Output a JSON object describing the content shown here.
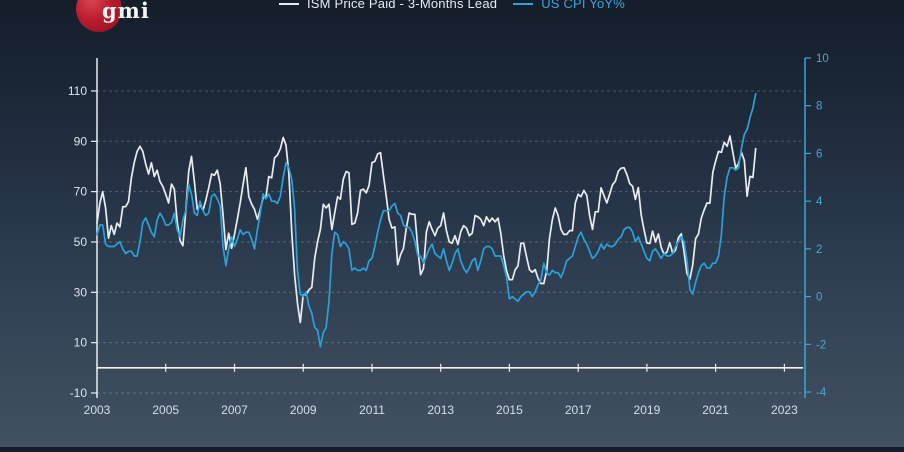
{
  "brand": {
    "logo_text": "gmi",
    "logo_color": "#b91c2e"
  },
  "chart_data": {
    "type": "line",
    "title": "",
    "legend_position": "top-center",
    "grid": "horizontal-dashed",
    "background": "dark-navy-gradient",
    "x_axis": {
      "range": [
        2003.0,
        2023.6
      ],
      "ticks": [
        2003,
        2005,
        2007,
        2009,
        2011,
        2013,
        2015,
        2017,
        2019,
        2021,
        2023
      ]
    },
    "left_axis": {
      "ticks": [
        -10,
        10,
        30,
        50,
        70,
        90,
        110
      ],
      "range": [
        -12,
        123.1
      ],
      "color": "#e9edf1"
    },
    "right_axis": {
      "ticks": [
        -4,
        -2,
        0,
        2,
        4,
        6,
        8,
        10
      ],
      "range": [
        -4.25,
        10
      ],
      "color": "#3ea4d9"
    },
    "zero_baseline": {
      "axis": "left",
      "value": 0
    },
    "series": [
      {
        "name": "ISM Price Paid - 3-Months Lead",
        "color": "#e9edf0",
        "axis": "left",
        "x_start": 2003.0,
        "x_step_months": 1,
        "values": [
          57.5,
          65.5,
          70.0,
          63.5,
          51.5,
          56.5,
          53.0,
          57.5,
          56.0,
          64.0,
          64.0,
          66.0,
          75.5,
          81.5,
          86.0,
          88.0,
          86.0,
          81.0,
          77.0,
          81.5,
          76.0,
          78.5,
          74.0,
          72.0,
          69.0,
          65.5,
          73.0,
          71.0,
          58.0,
          50.5,
          48.5,
          62.5,
          78.0,
          84.0,
          74.0,
          63.0,
          65.0,
          62.5,
          66.5,
          71.5,
          77.0,
          76.5,
          78.5,
          73.0,
          61.0,
          47.0,
          53.5,
          47.5,
          53.0,
          59.0,
          65.5,
          73.0,
          79.5,
          68.0,
          65.0,
          63.0,
          59.0,
          63.0,
          67.5,
          68.0,
          76.0,
          75.5,
          83.5,
          84.5,
          87.0,
          91.5,
          88.5,
          77.0,
          53.5,
          37.0,
          25.5,
          18.0,
          29.0,
          29.0,
          31.0,
          32.0,
          43.5,
          50.0,
          55.0,
          65.0,
          63.5,
          65.0,
          55.0,
          61.5,
          68.0,
          67.0,
          75.0,
          78.0,
          77.5,
          57.0,
          57.5,
          61.5,
          70.5,
          71.0,
          69.5,
          72.5,
          81.5,
          82.0,
          85.0,
          85.5,
          76.5,
          68.0,
          59.0,
          55.5,
          56.0,
          41.0,
          45.0,
          47.5,
          55.5,
          61.5,
          61.0,
          61.0,
          47.5,
          37.0,
          39.5,
          54.0,
          58.0,
          55.0,
          52.5,
          55.5,
          56.5,
          61.5,
          54.5,
          50.0,
          49.5,
          52.5,
          49.0,
          54.0,
          56.5,
          55.5,
          52.5,
          53.5,
          60.5,
          60.0,
          59.0,
          56.5,
          60.0,
          58.0,
          59.5,
          58.0,
          59.5,
          53.5,
          44.5,
          38.5,
          35.0,
          35.0,
          39.0,
          40.5,
          49.5,
          49.5,
          44.0,
          39.0,
          38.0,
          39.0,
          35.5,
          33.5,
          33.5,
          38.5,
          51.5,
          59.0,
          63.5,
          60.5,
          55.0,
          53.0,
          53.0,
          54.5,
          54.5,
          65.5,
          69.0,
          68.0,
          70.5,
          68.5,
          60.5,
          55.0,
          62.0,
          62.0,
          71.5,
          68.5,
          65.5,
          69.0,
          72.7,
          74.2,
          78.1,
          79.3,
          79.5,
          76.8,
          73.2,
          72.1,
          66.9,
          71.6,
          60.7,
          54.9,
          49.6,
          49.4,
          54.3,
          50.0,
          53.2,
          47.8,
          45.1,
          46.0,
          49.7,
          45.5,
          46.7,
          51.7,
          53.3,
          45.9,
          37.4,
          35.3,
          40.8,
          51.3,
          53.2,
          59.5,
          62.8,
          65.5,
          65.4,
          77.6,
          82.1,
          86.0,
          85.6,
          89.6,
          88.0,
          92.1,
          85.7,
          79.4,
          81.2,
          85.7,
          82.4,
          68.2,
          76.1,
          75.6,
          87.1
        ]
      },
      {
        "name": "US CPI YoY%",
        "color": "#2ba1da",
        "axis": "right",
        "x_start": 2003.0,
        "x_step_months": 1,
        "values": [
          2.6,
          3.0,
          3.0,
          2.2,
          2.1,
          2.1,
          2.1,
          2.2,
          2.3,
          2.0,
          1.8,
          1.9,
          1.9,
          1.7,
          1.7,
          2.3,
          3.1,
          3.3,
          3.0,
          2.7,
          2.5,
          3.2,
          3.5,
          3.3,
          3.0,
          3.0,
          3.1,
          3.5,
          2.8,
          2.5,
          3.2,
          3.6,
          4.7,
          4.3,
          3.5,
          3.4,
          4.0,
          3.6,
          3.4,
          3.5,
          4.2,
          4.3,
          4.1,
          3.8,
          2.1,
          1.3,
          2.0,
          2.5,
          2.1,
          2.4,
          2.8,
          2.6,
          2.7,
          2.7,
          2.4,
          2.0,
          2.8,
          3.5,
          4.3,
          4.1,
          4.3,
          4.0,
          4.0,
          3.9,
          4.2,
          5.0,
          5.6,
          5.4,
          4.9,
          3.7,
          1.1,
          0.1,
          0.0,
          0.2,
          -0.4,
          -0.7,
          -1.3,
          -1.4,
          -2.1,
          -1.5,
          -1.3,
          -0.2,
          1.8,
          2.7,
          2.6,
          2.1,
          2.3,
          2.2,
          2.0,
          1.1,
          1.2,
          1.1,
          1.1,
          1.2,
          1.1,
          1.5,
          1.6,
          2.1,
          2.7,
          3.2,
          3.6,
          3.6,
          3.6,
          3.8,
          3.9,
          3.5,
          3.4,
          3.0,
          2.9,
          2.9,
          2.7,
          2.3,
          1.7,
          1.7,
          1.4,
          1.7,
          2.0,
          2.2,
          1.8,
          1.7,
          1.6,
          2.0,
          1.5,
          1.1,
          1.4,
          1.8,
          2.0,
          1.5,
          1.2,
          1.0,
          1.2,
          1.5,
          1.6,
          1.1,
          1.5,
          2.0,
          2.1,
          2.1,
          2.0,
          1.7,
          1.7,
          1.7,
          1.3,
          0.8,
          -0.1,
          0.0,
          -0.1,
          -0.2,
          0.0,
          0.1,
          0.2,
          0.2,
          0.0,
          0.2,
          0.5,
          0.7,
          1.4,
          1.0,
          0.9,
          1.1,
          1.0,
          1.0,
          0.8,
          1.1,
          1.5,
          1.6,
          1.7,
          2.1,
          2.5,
          2.7,
          2.4,
          2.2,
          1.9,
          1.6,
          1.7,
          1.9,
          2.2,
          2.0,
          2.2,
          2.1,
          2.1,
          2.2,
          2.4,
          2.5,
          2.8,
          2.9,
          2.9,
          2.7,
          2.3,
          2.5,
          2.2,
          1.9,
          1.6,
          1.5,
          1.9,
          2.0,
          1.8,
          1.6,
          1.8,
          1.7,
          1.7,
          1.8,
          2.1,
          2.3,
          2.5,
          2.3,
          1.5,
          0.3,
          0.1,
          0.6,
          1.0,
          1.3,
          1.4,
          1.2,
          1.2,
          1.4,
          1.4,
          1.7,
          2.6,
          4.2,
          5.0,
          5.4,
          5.4,
          5.3,
          5.4,
          6.2,
          6.8,
          7.0,
          7.5,
          7.9,
          8.5
        ]
      }
    ]
  }
}
